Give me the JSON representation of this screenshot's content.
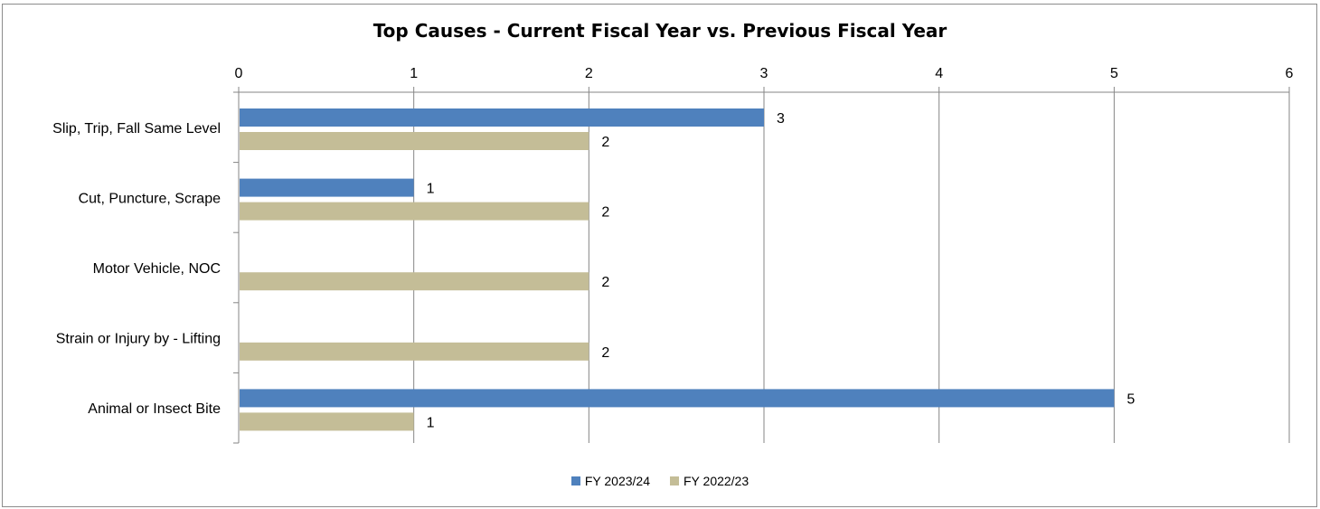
{
  "chart_data": {
    "type": "bar",
    "orientation": "horizontal",
    "title": "Top Causes - Current Fiscal Year vs. Previous Fiscal Year",
    "categories": [
      "Slip, Trip, Fall Same Level",
      "Cut, Puncture, Scrape",
      "Motor Vehicle, NOC",
      "Strain or Injury by - Lifting",
      "Animal or Insect Bite"
    ],
    "series": [
      {
        "name": "FY 2023/24",
        "color": "#4f81bd",
        "values": [
          3,
          1,
          null,
          null,
          5
        ]
      },
      {
        "name": "FY 2022/23",
        "color": "#c4bd97",
        "values": [
          2,
          2,
          2,
          2,
          1
        ]
      }
    ],
    "xlim": [
      0,
      6
    ],
    "xticks": [
      0,
      1,
      2,
      3,
      4,
      5,
      6
    ],
    "xaxis_position": "top",
    "grid": "vertical",
    "data_labels": true,
    "legend": "bottom"
  }
}
